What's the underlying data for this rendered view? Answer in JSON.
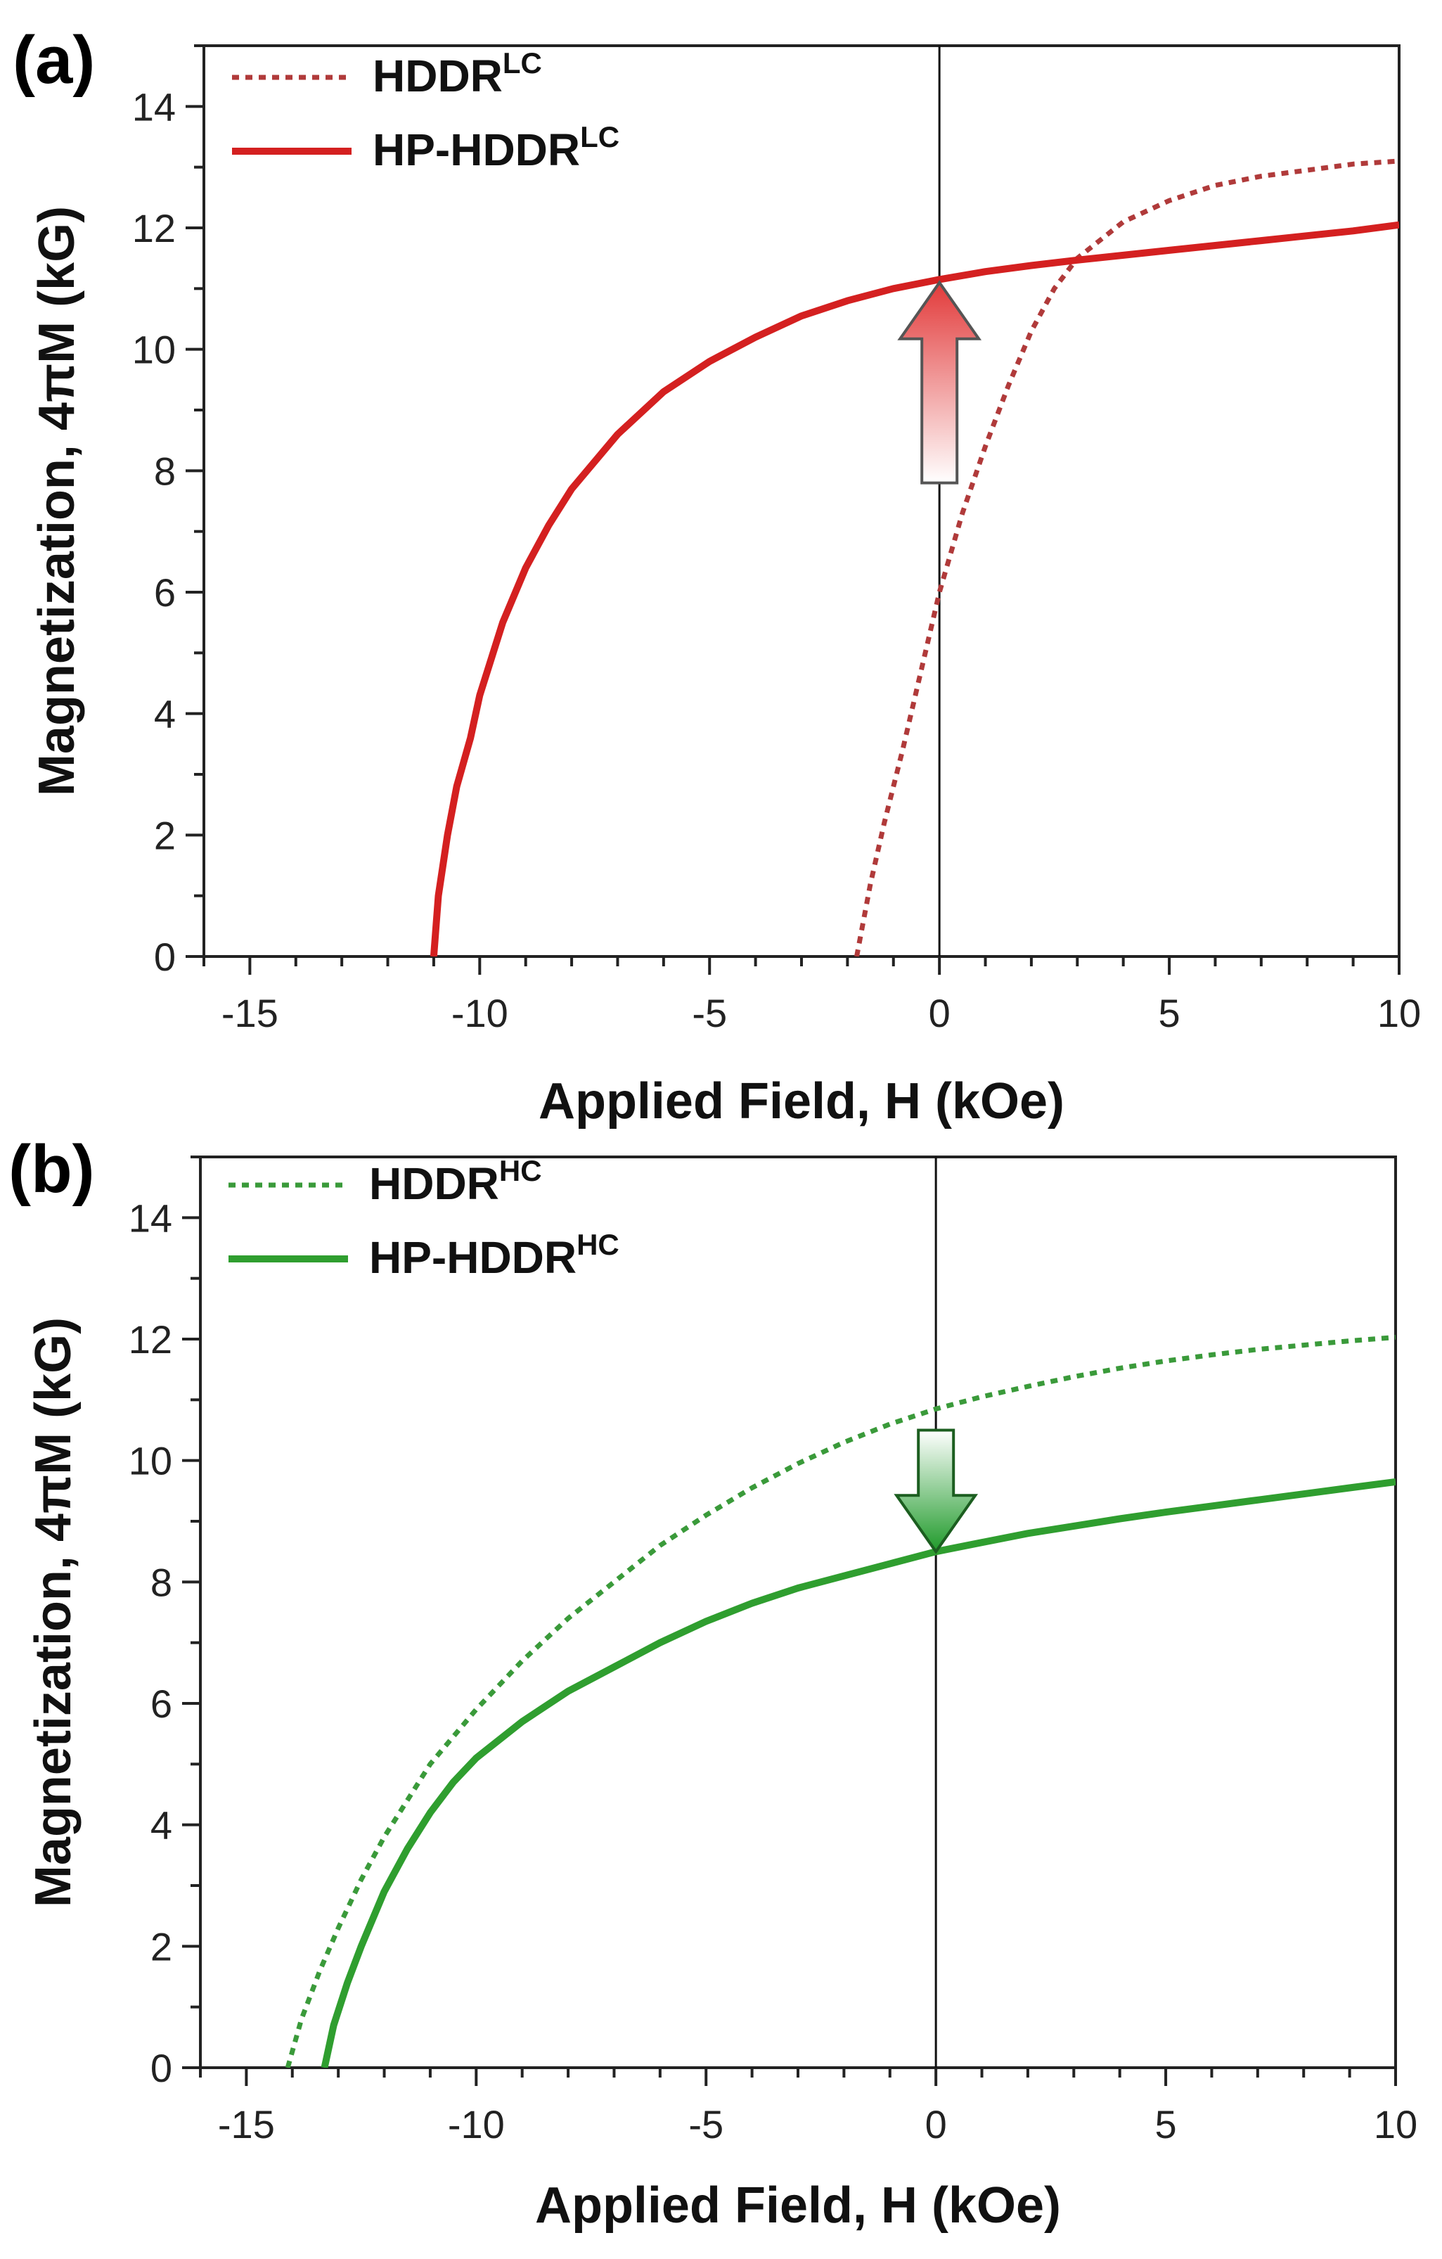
{
  "chart_data": [
    {
      "type": "line",
      "panel_label": "(a)",
      "xlabel": "Applied Field, H (kOe)",
      "ylabel": "Magnetization, 4πM (kG)",
      "xlim": [
        -16,
        10
      ],
      "ylim": [
        0,
        15
      ],
      "xticks": [
        -15,
        -10,
        -5,
        0,
        5,
        10
      ],
      "yticks": [
        0,
        2,
        4,
        6,
        8,
        10,
        12,
        14
      ],
      "xtick_labels": [
        "-15",
        "-10",
        "-5",
        "0",
        "5",
        "10"
      ],
      "ytick_labels": [
        "0",
        "2",
        "4",
        "6",
        "8",
        "10",
        "12",
        "14"
      ],
      "grid": false,
      "legend_position": "top-left",
      "vertical_line_x": 0,
      "annotation": {
        "type": "arrow",
        "direction": "up",
        "x": 0,
        "y_from": 7.8,
        "y_to": 11.1
      },
      "series": [
        {
          "name_main": "HDDR",
          "name_sup": "LC",
          "style": "dotted",
          "color": "#b03a3a",
          "x": [
            -1.8,
            -1.5,
            -1.2,
            -0.8,
            -0.4,
            0,
            0.5,
            1,
            1.5,
            2,
            2.5,
            3,
            4,
            5,
            6,
            7,
            8,
            9,
            10
          ],
          "y": [
            0,
            1.2,
            2.2,
            3.4,
            4.7,
            6.0,
            7.3,
            8.4,
            9.4,
            10.3,
            11.0,
            11.5,
            12.1,
            12.45,
            12.7,
            12.85,
            12.95,
            13.05,
            13.1
          ]
        },
        {
          "name_main": "HP-HDDR",
          "name_sup": "LC",
          "style": "solid",
          "color": "#d42020",
          "x": [
            -11,
            -10.9,
            -10.7,
            -10.5,
            -10.2,
            -10,
            -9.5,
            -9,
            -8.5,
            -8,
            -7,
            -6,
            -5,
            -4,
            -3,
            -2,
            -1,
            0,
            1,
            2,
            3,
            4,
            5,
            6,
            7,
            8,
            9,
            10
          ],
          "y": [
            0,
            1.0,
            2.0,
            2.8,
            3.6,
            4.3,
            5.5,
            6.4,
            7.1,
            7.7,
            8.6,
            9.3,
            9.8,
            10.2,
            10.55,
            10.8,
            11.0,
            11.15,
            11.28,
            11.38,
            11.47,
            11.55,
            11.63,
            11.71,
            11.79,
            11.87,
            11.95,
            12.05
          ]
        }
      ]
    },
    {
      "type": "line",
      "panel_label": "(b)",
      "xlabel": "Applied Field, H (kOe)",
      "ylabel": "Magnetization, 4πM (kG)",
      "xlim": [
        -16,
        10
      ],
      "ylim": [
        0,
        15
      ],
      "xticks": [
        -15,
        -10,
        -5,
        0,
        5,
        10
      ],
      "yticks": [
        0,
        2,
        4,
        6,
        8,
        10,
        12,
        14
      ],
      "xtick_labels": [
        "-15",
        "-10",
        "-5",
        "0",
        "5",
        "10"
      ],
      "ytick_labels": [
        "0",
        "2",
        "4",
        "6",
        "8",
        "10",
        "12",
        "14"
      ],
      "grid": false,
      "legend_position": "top-left",
      "vertical_line_x": 0,
      "annotation": {
        "type": "arrow",
        "direction": "down",
        "x": 0,
        "y_from": 10.5,
        "y_to": 8.5
      },
      "series": [
        {
          "name_main": "HDDR",
          "name_sup": "HC",
          "style": "dotted",
          "color": "#3a9a3a",
          "x": [
            -14.1,
            -13.8,
            -13.4,
            -13,
            -12.5,
            -12,
            -11.5,
            -11,
            -10,
            -9,
            -8,
            -7,
            -6,
            -5,
            -4,
            -3,
            -2,
            -1,
            0,
            1,
            2,
            3,
            4,
            5,
            6,
            7,
            8,
            9,
            10
          ],
          "y": [
            0,
            0.8,
            1.6,
            2.3,
            3.1,
            3.8,
            4.4,
            5.0,
            5.9,
            6.7,
            7.4,
            8.0,
            8.6,
            9.1,
            9.55,
            9.95,
            10.3,
            10.6,
            10.85,
            11.05,
            11.22,
            11.38,
            11.52,
            11.64,
            11.74,
            11.83,
            11.9,
            11.97,
            12.03
          ]
        },
        {
          "name_main": "HP-HDDR",
          "name_sup": "HC",
          "style": "solid",
          "color": "#2f9e2f",
          "x": [
            -13.3,
            -13.1,
            -12.8,
            -12.5,
            -12,
            -11.5,
            -11,
            -10.5,
            -10,
            -9,
            -8,
            -7,
            -6,
            -5,
            -4,
            -3,
            -2,
            -1,
            0,
            1,
            2,
            3,
            4,
            5,
            6,
            7,
            8,
            9,
            10
          ],
          "y": [
            0,
            0.7,
            1.4,
            2.0,
            2.9,
            3.6,
            4.2,
            4.7,
            5.1,
            5.7,
            6.2,
            6.6,
            7.0,
            7.35,
            7.65,
            7.9,
            8.1,
            8.3,
            8.5,
            8.65,
            8.8,
            8.92,
            9.04,
            9.15,
            9.25,
            9.35,
            9.45,
            9.55,
            9.65
          ]
        }
      ]
    }
  ]
}
